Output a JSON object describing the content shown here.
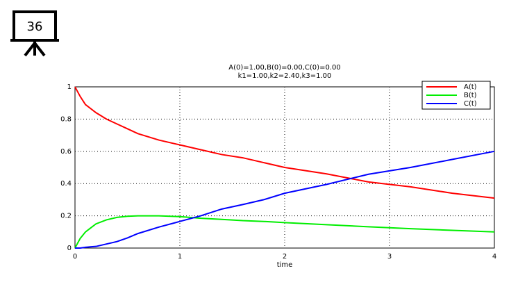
{
  "slide_number": "36",
  "chart_data": {
    "type": "line",
    "title": [
      "A(0)=1.00,B(0)=0.00,C(0)=0.00",
      "k1=1.00,k2=2.40,k3=1.00"
    ],
    "x_label": "time",
    "x": [
      0,
      0.05,
      0.1,
      0.2,
      0.3,
      0.4,
      0.5,
      0.6,
      0.8,
      1.0,
      1.2,
      1.4,
      1.6,
      1.8,
      2.0,
      2.4,
      2.8,
      3.2,
      3.6,
      4.0
    ],
    "series": [
      {
        "name": "A(t)",
        "color": "#ff0000",
        "values": [
          1,
          0.94,
          0.89,
          0.84,
          0.8,
          0.77,
          0.74,
          0.71,
          0.67,
          0.64,
          0.61,
          0.58,
          0.56,
          0.53,
          0.5,
          0.46,
          0.41,
          0.38,
          0.34,
          0.31
        ]
      },
      {
        "name": "B(t)",
        "color": "#00ee00",
        "values": [
          0,
          0.06,
          0.1,
          0.15,
          0.175,
          0.19,
          0.197,
          0.2,
          0.2,
          0.195,
          0.185,
          0.178,
          0.17,
          0.165,
          0.158,
          0.145,
          0.132,
          0.12,
          0.11,
          0.1
        ]
      },
      {
        "name": "C(t)",
        "color": "#0000ff",
        "values": [
          0,
          0.0,
          0.005,
          0.01,
          0.025,
          0.04,
          0.063,
          0.09,
          0.13,
          0.165,
          0.2,
          0.242,
          0.27,
          0.3,
          0.34,
          0.395,
          0.458,
          0.5,
          0.55,
          0.6
        ]
      }
    ],
    "xlim": [
      0,
      4
    ],
    "xticks": [
      0,
      1,
      2,
      3,
      4
    ],
    "ylim": [
      0,
      1
    ],
    "yticks": [
      0,
      0.2,
      0.4,
      0.6,
      0.8,
      1
    ],
    "grid": true,
    "legend": "top-right"
  }
}
